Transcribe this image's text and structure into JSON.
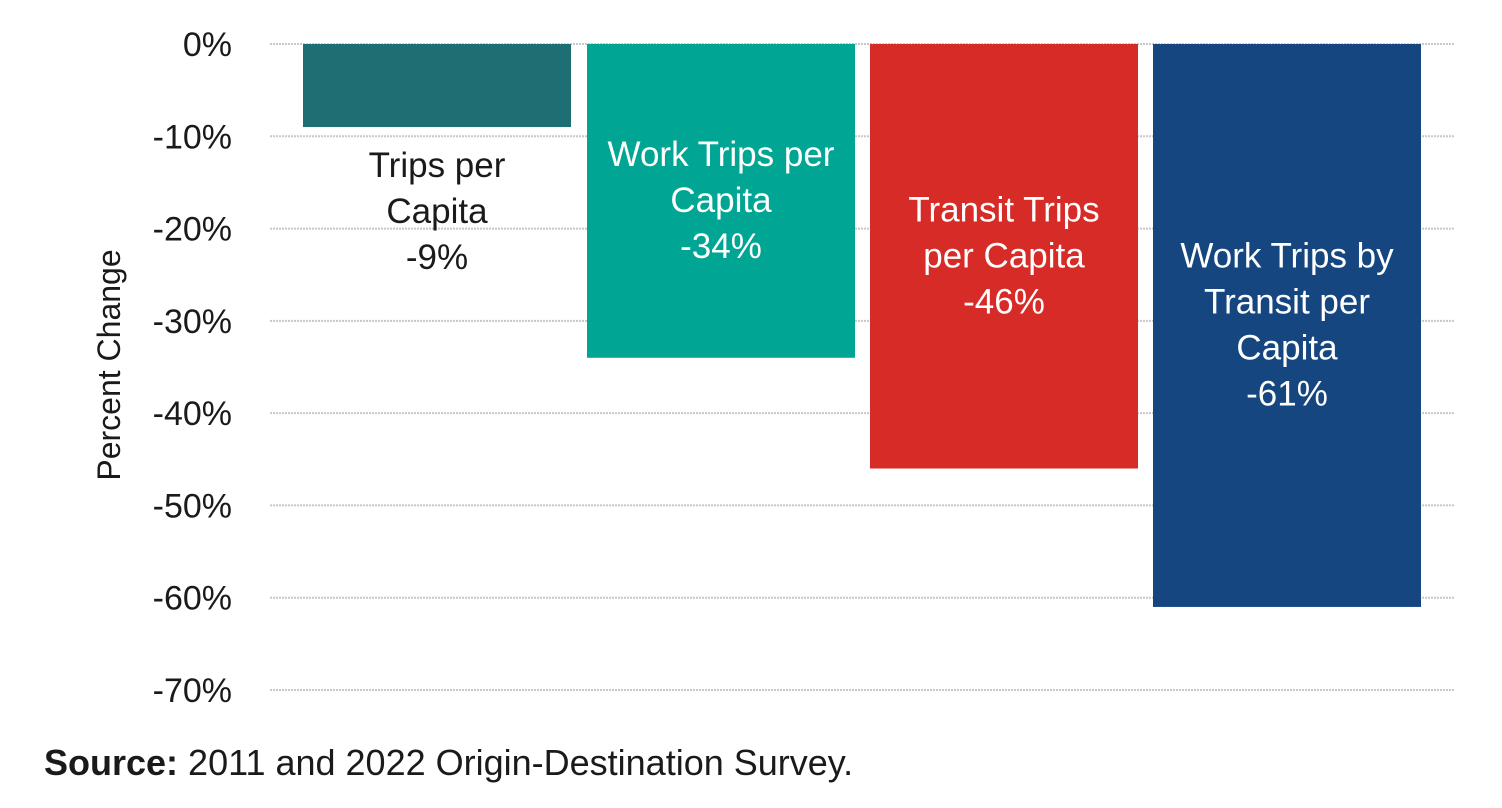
{
  "chart_data": {
    "type": "bar",
    "title": "",
    "xlabel": "",
    "ylabel": "Percent Change",
    "ylim": [
      -70,
      0
    ],
    "yticks": [
      0,
      -10,
      -20,
      -30,
      -40,
      -50,
      -60,
      -70
    ],
    "ytick_labels": [
      "0%",
      "-10%",
      "-20%",
      "-30%",
      "-40%",
      "-50%",
      "-60%",
      "-70%"
    ],
    "grid": true,
    "legend": "none",
    "categories": [
      "Trips per Capita",
      "Work Trips per Capita",
      "Transit Trips per Capita",
      "Work Trips by Transit per Capita"
    ],
    "values": [
      -9,
      -34,
      -46,
      -61
    ],
    "bars": [
      {
        "label_lines": [
          "Trips per",
          "Capita",
          "-9%"
        ],
        "value": -9,
        "color": "#1e6f73",
        "label_color": "#1a1a1a",
        "label_placement": "below"
      },
      {
        "label_lines": [
          "Work Trips per",
          "Capita",
          "-34%"
        ],
        "value": -34,
        "color": "#00a693",
        "label_color": "#ffffff",
        "label_placement": "inside"
      },
      {
        "label_lines": [
          "Transit Trips",
          "per Capita",
          "-46%"
        ],
        "value": -46,
        "color": "#d62b27",
        "label_color": "#ffffff",
        "label_placement": "inside"
      },
      {
        "label_lines": [
          "Work Trips by",
          "Transit per",
          "Capita",
          "-61%"
        ],
        "value": -61,
        "color": "#15467f",
        "label_color": "#ffffff",
        "label_placement": "inside"
      }
    ]
  },
  "source": {
    "prefix": "Source:",
    "text": " 2011 and 2022 Origin-Destination Survey."
  }
}
